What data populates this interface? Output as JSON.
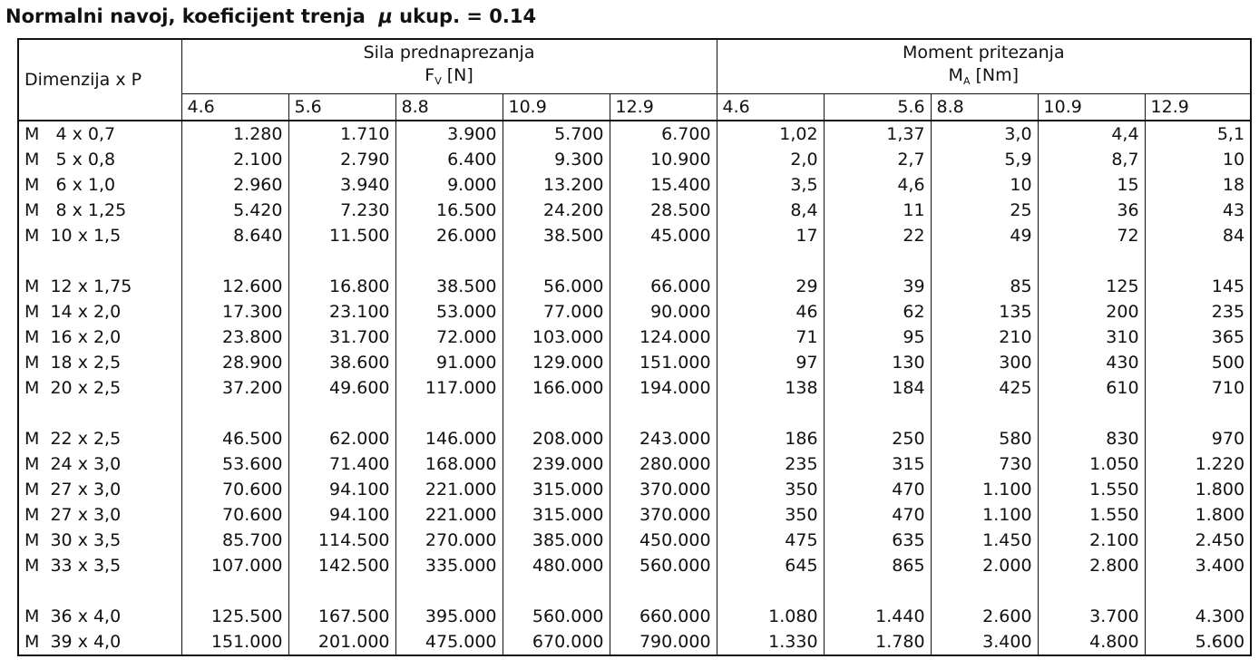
{
  "title": {
    "prefix": "Normalni navoj, koeficijent trenja",
    "mu": "μ",
    "suffix": "ukup. = 0.14"
  },
  "header": {
    "dimension": "Dimenzija x P",
    "force_group": "Sila prednaprezanja",
    "force_symbol": "F",
    "force_sub": "V",
    "force_unit": " [N]",
    "torque_group": "Moment pritezanja",
    "torque_symbol": "M",
    "torque_sub": "A",
    "torque_unit": " [Nm]",
    "grades": [
      "4.6",
      "5.6",
      "8.8",
      "10.9",
      "12.9"
    ]
  },
  "rows": [
    {
      "dim": "M   4 x 0,7",
      "f": [
        "1.280",
        "1.710",
        "3.900",
        "5.700",
        "6.700"
      ],
      "m": [
        "1,02",
        "1,37",
        "3,0",
        "4,4",
        "5,1"
      ]
    },
    {
      "dim": "M   5 x 0,8",
      "f": [
        "2.100",
        "2.790",
        "6.400",
        "9.300",
        "10.900"
      ],
      "m": [
        "2,0",
        "2,7",
        "5,9",
        "8,7",
        "10"
      ]
    },
    {
      "dim": "M   6 x 1,0",
      "f": [
        "2.960",
        "3.940",
        "9.000",
        "13.200",
        "15.400"
      ],
      "m": [
        "3,5",
        "4,6",
        "10",
        "15",
        "18"
      ]
    },
    {
      "dim": "M   8 x 1,25",
      "f": [
        "5.420",
        "7.230",
        "16.500",
        "24.200",
        "28.500"
      ],
      "m": [
        "8,4",
        "11",
        "25",
        "36",
        "43"
      ]
    },
    {
      "dim": "M  10 x 1,5",
      "f": [
        "8.640",
        "11.500",
        "26.000",
        "38.500",
        "45.000"
      ],
      "m": [
        "17",
        "22",
        "49",
        "72",
        "84"
      ]
    },
    null,
    {
      "dim": "M  12 x 1,75",
      "f": [
        "12.600",
        "16.800",
        "38.500",
        "56.000",
        "66.000"
      ],
      "m": [
        "29",
        "39",
        "85",
        "125",
        "145"
      ]
    },
    {
      "dim": "M  14 x 2,0",
      "f": [
        "17.300",
        "23.100",
        "53.000",
        "77.000",
        "90.000"
      ],
      "m": [
        "46",
        "62",
        "135",
        "200",
        "235"
      ]
    },
    {
      "dim": "M  16 x 2,0",
      "f": [
        "23.800",
        "31.700",
        "72.000",
        "103.000",
        "124.000"
      ],
      "m": [
        "71",
        "95",
        "210",
        "310",
        "365"
      ]
    },
    {
      "dim": "M  18 x 2,5",
      "f": [
        "28.900",
        "38.600",
        "91.000",
        "129.000",
        "151.000"
      ],
      "m": [
        "97",
        "130",
        "300",
        "430",
        "500"
      ]
    },
    {
      "dim": "M  20 x 2,5",
      "f": [
        "37.200",
        "49.600",
        "117.000",
        "166.000",
        "194.000"
      ],
      "m": [
        "138",
        "184",
        "425",
        "610",
        "710"
      ]
    },
    null,
    {
      "dim": "M  22 x 2,5",
      "f": [
        "46.500",
        "62.000",
        "146.000",
        "208.000",
        "243.000"
      ],
      "m": [
        "186",
        "250",
        "580",
        "830",
        "970"
      ]
    },
    {
      "dim": "M  24 x 3,0",
      "f": [
        "53.600",
        "71.400",
        "168.000",
        "239.000",
        "280.000"
      ],
      "m": [
        "235",
        "315",
        "730",
        "1.050",
        "1.220"
      ]
    },
    {
      "dim": "M  27 x 3,0",
      "f": [
        "70.600",
        "94.100",
        "221.000",
        "315.000",
        "370.000"
      ],
      "m": [
        "350",
        "470",
        "1.100",
        "1.550",
        "1.800"
      ]
    },
    {
      "dim": "M  27 x 3,0",
      "f": [
        "70.600",
        "94.100",
        "221.000",
        "315.000",
        "370.000"
      ],
      "m": [
        "350",
        "470",
        "1.100",
        "1.550",
        "1.800"
      ]
    },
    {
      "dim": "M  30 x 3,5",
      "f": [
        "85.700",
        "114.500",
        "270.000",
        "385.000",
        "450.000"
      ],
      "m": [
        "475",
        "635",
        "1.450",
        "2.100",
        "2.450"
      ]
    },
    {
      "dim": "M  33 x 3,5",
      "f": [
        "107.000",
        "142.500",
        "335.000",
        "480.000",
        "560.000"
      ],
      "m": [
        "645",
        "865",
        "2.000",
        "2.800",
        "3.400"
      ]
    },
    null,
    {
      "dim": "M  36 x 4,0",
      "f": [
        "125.500",
        "167.500",
        "395.000",
        "560.000",
        "660.000"
      ],
      "m": [
        "1.080",
        "1.440",
        "2.600",
        "3.700",
        "4.300"
      ]
    },
    {
      "dim": "M  39 x 4,0",
      "f": [
        "151.000",
        "201.000",
        "475.000",
        "670.000",
        "790.000"
      ],
      "m": [
        "1.330",
        "1.780",
        "3.400",
        "4.800",
        "5.600"
      ]
    }
  ]
}
